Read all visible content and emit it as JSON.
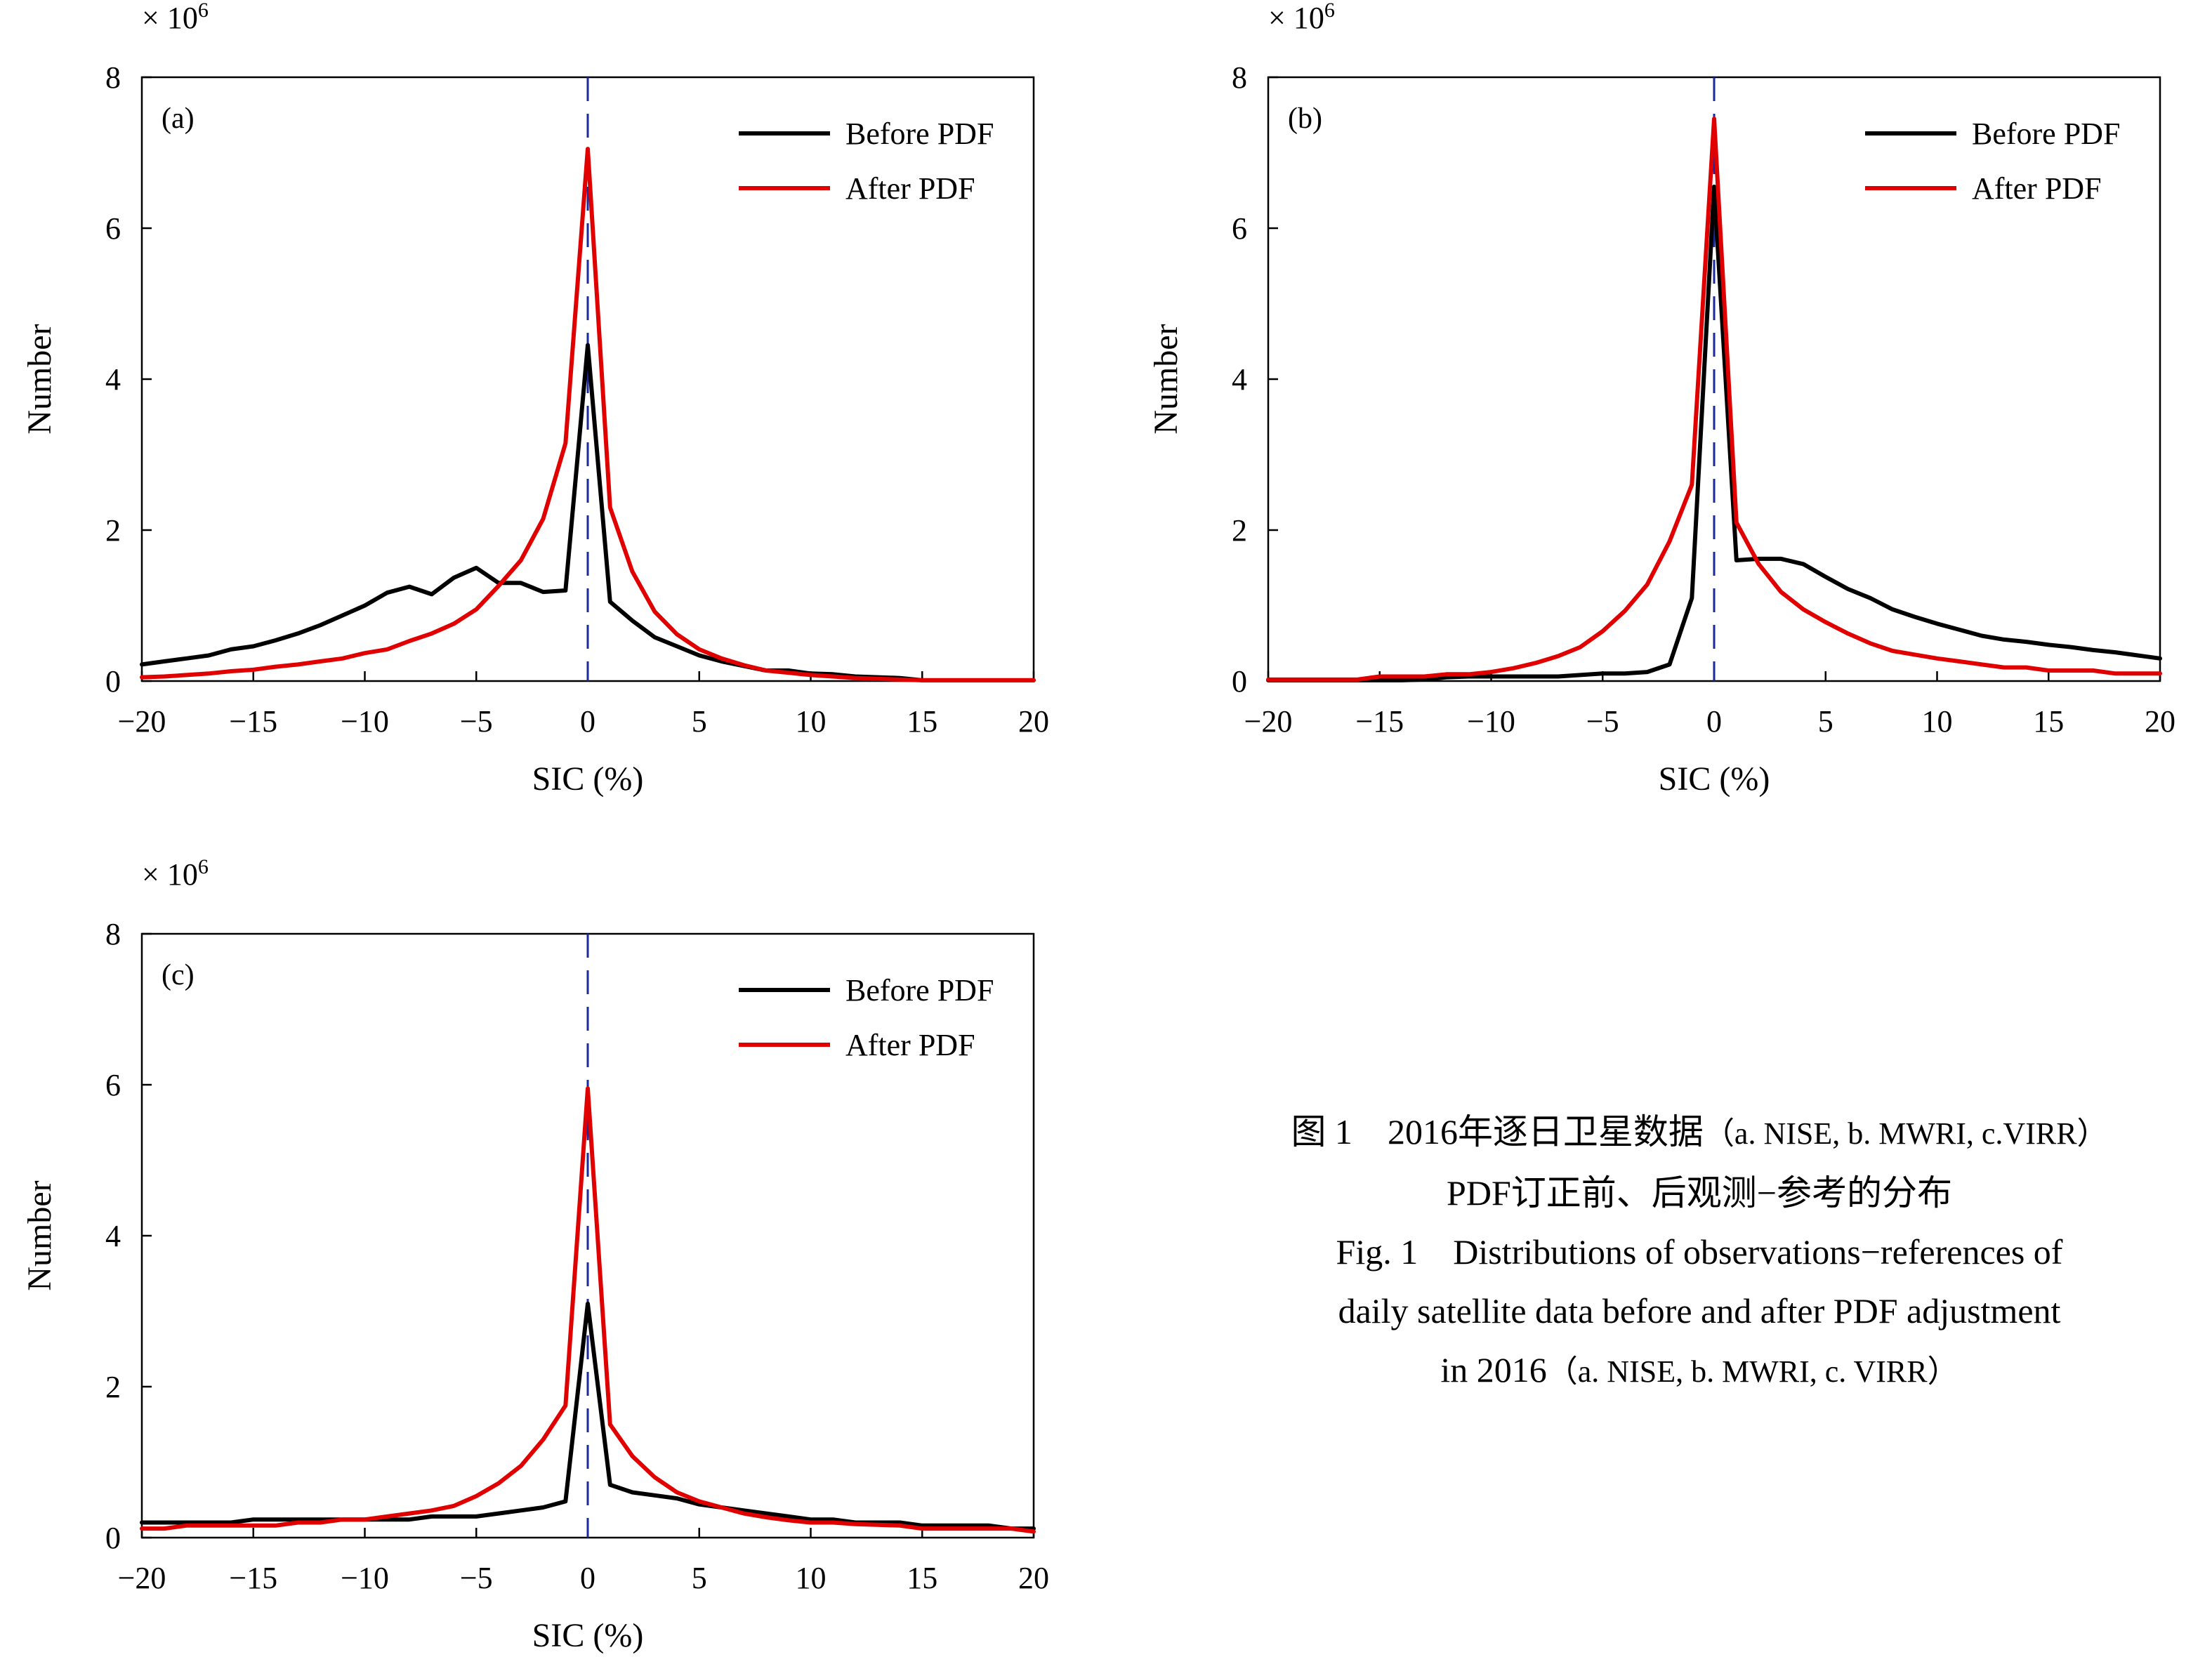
{
  "colors": {
    "before": "#000000",
    "after": "#e00000",
    "zero_line": "#1a2a9e",
    "axis": "#000000"
  },
  "chart_data": [
    {
      "type": "line",
      "panel_label": "(a)",
      "multiplier": "× 10",
      "multiplier_exp": "6",
      "xlabel": "SIC (%)",
      "ylabel": "Number",
      "xlim": [
        -20,
        20
      ],
      "ylim": [
        0,
        8
      ],
      "xticks": [
        -20,
        -15,
        -10,
        -5,
        0,
        5,
        10,
        15,
        20
      ],
      "xtick_labels": [
        "−20",
        "−15",
        "−10",
        "−5",
        "0",
        "5",
        "10",
        "15",
        "20"
      ],
      "yticks": [
        0,
        2,
        4,
        6,
        8
      ],
      "ytick_labels": [
        "0",
        "2",
        "4",
        "6",
        "8"
      ],
      "reference_line_x": 0,
      "series": [
        {
          "name": "Before PDF",
          "color": "#000000",
          "x": [
            -20,
            -19,
            -18,
            -17,
            -16,
            -15,
            -14,
            -13,
            -12,
            -11,
            -10,
            -9,
            -8,
            -7,
            -6,
            -5,
            -4,
            -3,
            -2,
            -1,
            0,
            1,
            2,
            3,
            4,
            5,
            6,
            7,
            8,
            9,
            10,
            11,
            12,
            13,
            14,
            15,
            16,
            17,
            18,
            19,
            20
          ],
          "y": [
            0.22,
            0.26,
            0.3,
            0.34,
            0.42,
            0.46,
            0.54,
            0.63,
            0.74,
            0.87,
            1.0,
            1.17,
            1.25,
            1.15,
            1.37,
            1.5,
            1.3,
            1.3,
            1.18,
            1.2,
            4.45,
            1.05,
            0.8,
            0.58,
            0.46,
            0.34,
            0.26,
            0.2,
            0.14,
            0.14,
            0.1,
            0.09,
            0.06,
            0.05,
            0.04,
            0.01,
            0.01,
            0.01,
            0.01,
            0.01,
            0.01
          ]
        },
        {
          "name": "After PDF",
          "color": "#e00000",
          "x": [
            -20,
            -19,
            -18,
            -17,
            -16,
            -15,
            -14,
            -13,
            -12,
            -11,
            -10,
            -9,
            -8,
            -7,
            -6,
            -5,
            -4,
            -3,
            -2,
            -1,
            0,
            1,
            2,
            3,
            4,
            5,
            6,
            7,
            8,
            9,
            10,
            11,
            12,
            13,
            14,
            15,
            16,
            17,
            18,
            19,
            20
          ],
          "y": [
            0.05,
            0.06,
            0.08,
            0.1,
            0.13,
            0.15,
            0.19,
            0.22,
            0.26,
            0.3,
            0.37,
            0.42,
            0.53,
            0.63,
            0.76,
            0.95,
            1.26,
            1.6,
            2.15,
            3.15,
            7.05,
            2.3,
            1.45,
            0.92,
            0.62,
            0.42,
            0.3,
            0.21,
            0.14,
            0.11,
            0.08,
            0.06,
            0.04,
            0.03,
            0.02,
            0.01,
            0.01,
            0.01,
            0.01,
            0.01,
            0.01
          ]
        }
      ]
    },
    {
      "type": "line",
      "panel_label": "(b)",
      "multiplier": "× 10",
      "multiplier_exp": "6",
      "xlabel": "SIC (%)",
      "ylabel": "Number",
      "xlim": [
        -20,
        20
      ],
      "ylim": [
        0,
        8
      ],
      "xticks": [
        -20,
        -15,
        -10,
        -5,
        0,
        5,
        10,
        15,
        20
      ],
      "xtick_labels": [
        "−20",
        "−15",
        "−10",
        "−5",
        "0",
        "5",
        "10",
        "15",
        "20"
      ],
      "yticks": [
        0,
        2,
        4,
        6,
        8
      ],
      "ytick_labels": [
        "0",
        "2",
        "4",
        "6",
        "8"
      ],
      "reference_line_x": 0,
      "series": [
        {
          "name": "Before PDF",
          "color": "#000000",
          "x": [
            -20,
            -19,
            -18,
            -17,
            -16,
            -15,
            -14,
            -13,
            -12,
            -11,
            -10,
            -9,
            -8,
            -7,
            -6,
            -5,
            -4,
            -3,
            -2,
            -1,
            0,
            1,
            2,
            3,
            4,
            5,
            6,
            7,
            8,
            9,
            10,
            11,
            12,
            13,
            14,
            15,
            16,
            17,
            18,
            19,
            20
          ],
          "y": [
            0.01,
            0.01,
            0.01,
            0.01,
            0.01,
            0.01,
            0.01,
            0.02,
            0.05,
            0.06,
            0.06,
            0.06,
            0.06,
            0.06,
            0.08,
            0.1,
            0.1,
            0.12,
            0.22,
            1.1,
            6.55,
            1.6,
            1.62,
            1.62,
            1.55,
            1.38,
            1.22,
            1.1,
            0.95,
            0.85,
            0.76,
            0.68,
            0.6,
            0.55,
            0.52,
            0.48,
            0.45,
            0.41,
            0.38,
            0.34,
            0.3
          ]
        },
        {
          "name": "After PDF",
          "color": "#e00000",
          "x": [
            -20,
            -19,
            -18,
            -17,
            -16,
            -15,
            -14,
            -13,
            -12,
            -11,
            -10,
            -9,
            -8,
            -7,
            -6,
            -5,
            -4,
            -3,
            -2,
            -1,
            0,
            1,
            2,
            3,
            4,
            5,
            6,
            7,
            8,
            9,
            10,
            11,
            12,
            13,
            14,
            15,
            16,
            17,
            18,
            19,
            20
          ],
          "y": [
            0.02,
            0.02,
            0.02,
            0.02,
            0.02,
            0.06,
            0.06,
            0.06,
            0.09,
            0.09,
            0.12,
            0.17,
            0.24,
            0.33,
            0.45,
            0.66,
            0.93,
            1.28,
            1.85,
            2.6,
            7.45,
            2.1,
            1.55,
            1.18,
            0.95,
            0.78,
            0.63,
            0.5,
            0.4,
            0.35,
            0.3,
            0.26,
            0.22,
            0.18,
            0.18,
            0.14,
            0.14,
            0.14,
            0.1,
            0.1,
            0.1
          ]
        }
      ]
    },
    {
      "type": "line",
      "panel_label": "(c)",
      "multiplier": "× 10",
      "multiplier_exp": "6",
      "xlabel": "SIC (%)",
      "ylabel": "Number",
      "xlim": [
        -20,
        20
      ],
      "ylim": [
        0,
        8
      ],
      "xticks": [
        -20,
        -15,
        -10,
        -5,
        0,
        5,
        10,
        15,
        20
      ],
      "xtick_labels": [
        "−20",
        "−15",
        "−10",
        "−5",
        "0",
        "5",
        "10",
        "15",
        "20"
      ],
      "yticks": [
        0,
        2,
        4,
        6,
        8
      ],
      "ytick_labels": [
        "0",
        "2",
        "4",
        "6",
        "8"
      ],
      "reference_line_x": 0,
      "series": [
        {
          "name": "Before PDF",
          "color": "#000000",
          "x": [
            -20,
            -19,
            -18,
            -17,
            -16,
            -15,
            -14,
            -13,
            -12,
            -11,
            -10,
            -9,
            -8,
            -7,
            -6,
            -5,
            -4,
            -3,
            -2,
            -1,
            0,
            1,
            2,
            3,
            4,
            5,
            6,
            7,
            8,
            9,
            10,
            11,
            12,
            13,
            14,
            15,
            16,
            17,
            18,
            19,
            20
          ],
          "y": [
            0.2,
            0.2,
            0.2,
            0.2,
            0.2,
            0.24,
            0.24,
            0.24,
            0.24,
            0.24,
            0.24,
            0.24,
            0.24,
            0.28,
            0.28,
            0.28,
            0.32,
            0.36,
            0.4,
            0.48,
            3.1,
            0.7,
            0.6,
            0.56,
            0.52,
            0.44,
            0.4,
            0.36,
            0.32,
            0.28,
            0.24,
            0.24,
            0.2,
            0.2,
            0.2,
            0.16,
            0.16,
            0.16,
            0.16,
            0.12,
            0.12
          ]
        },
        {
          "name": "After PDF",
          "color": "#e00000",
          "x": [
            -20,
            -19,
            -18,
            -17,
            -16,
            -15,
            -14,
            -13,
            -12,
            -11,
            -10,
            -9,
            -8,
            -7,
            -6,
            -5,
            -4,
            -3,
            -2,
            -1,
            0,
            1,
            2,
            3,
            4,
            5,
            6,
            7,
            8,
            9,
            10,
            11,
            12,
            13,
            14,
            15,
            16,
            17,
            18,
            19,
            20
          ],
          "y": [
            0.12,
            0.12,
            0.16,
            0.16,
            0.16,
            0.16,
            0.16,
            0.2,
            0.2,
            0.24,
            0.24,
            0.28,
            0.32,
            0.36,
            0.42,
            0.55,
            0.72,
            0.95,
            1.3,
            1.75,
            5.95,
            1.5,
            1.08,
            0.8,
            0.6,
            0.48,
            0.4,
            0.32,
            0.27,
            0.23,
            0.2,
            0.2,
            0.18,
            0.17,
            0.16,
            0.12,
            0.12,
            0.12,
            0.12,
            0.12,
            0.08
          ]
        }
      ]
    }
  ],
  "caption": {
    "cn_prefix": "图 1",
    "cn_title_main": "2016年逐日卫星数据",
    "cn_title_paren": "（a. NISE, b. MWRI, c.VIRR）",
    "cn_line2": "PDF订正前、后观测−参考的分布",
    "en_prefix": "Fig. 1",
    "en_line1": "Distributions of observations−references of",
    "en_line2": "daily satellite data before and after PDF adjustment",
    "en_line3_main": "in 2016",
    "en_line3_paren": "（a. NISE, b. MWRI, c. VIRR）"
  }
}
